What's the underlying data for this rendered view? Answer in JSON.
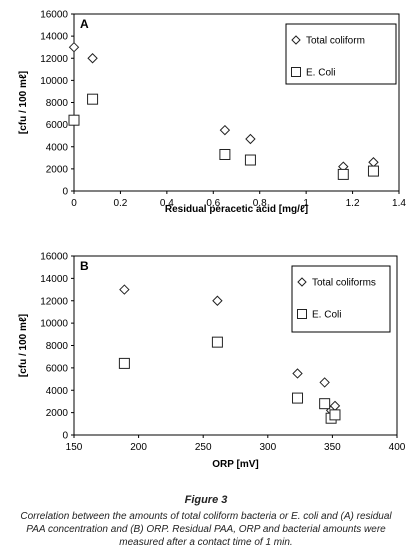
{
  "chart_data": [
    {
      "type": "scatter",
      "panel_label": "A",
      "xlabel": "Residual peracetic acid [mg/ℓ]",
      "ylabel": "[cfu / 100 mℓ]",
      "xlim": [
        0,
        1.4
      ],
      "ylim": [
        0,
        16000
      ],
      "xticks": [
        "0",
        "0.2",
        "0.4",
        "0.6",
        "0.8",
        "1",
        "1.2",
        "1.4"
      ],
      "yticks": [
        "0",
        "2000",
        "4000",
        "6000",
        "8000",
        "10000",
        "12000",
        "14000",
        "16000"
      ],
      "legend_position": "top-right",
      "series": [
        {
          "name": "Total coliform",
          "marker": "diamond",
          "x": [
            0.0,
            0.08,
            0.65,
            0.76,
            1.16,
            1.29
          ],
          "y": [
            13000,
            12000,
            5500,
            4700,
            2200,
            2600
          ]
        },
        {
          "name": "E. Coli",
          "marker": "square",
          "x": [
            0.0,
            0.08,
            0.65,
            0.76,
            1.16,
            1.29
          ],
          "y": [
            6400,
            8300,
            3300,
            2800,
            1500,
            1800
          ]
        }
      ]
    },
    {
      "type": "scatter",
      "panel_label": "B",
      "xlabel": "ORP [mV]",
      "ylabel": "[cfu / 100 mℓ]",
      "xlim": [
        150,
        400
      ],
      "ylim": [
        0,
        16000
      ],
      "xticks": [
        "150",
        "200",
        "250",
        "300",
        "350",
        "400"
      ],
      "yticks": [
        "0",
        "2000",
        "4000",
        "6000",
        "8000",
        "10000",
        "12000",
        "14000",
        "16000"
      ],
      "legend_position": "top-right",
      "series": [
        {
          "name": "Total coliforms",
          "marker": "diamond",
          "x": [
            189,
            261,
            323,
            344,
            349,
            352
          ],
          "y": [
            13000,
            12000,
            5500,
            4700,
            2200,
            2600
          ]
        },
        {
          "name": "E. Coli",
          "marker": "square",
          "x": [
            189,
            261,
            323,
            344,
            349,
            352
          ],
          "y": [
            6400,
            8300,
            3300,
            2800,
            1500,
            1800
          ]
        }
      ]
    }
  ],
  "caption": {
    "title": "Figure 3",
    "text": "Correlation between the amounts of total coliform bacteria or E. coli and (A) residual PAA concentration and (B) ORP. Residual PAA, ORP and bacterial amounts were measured after a contact time of 1 min."
  }
}
